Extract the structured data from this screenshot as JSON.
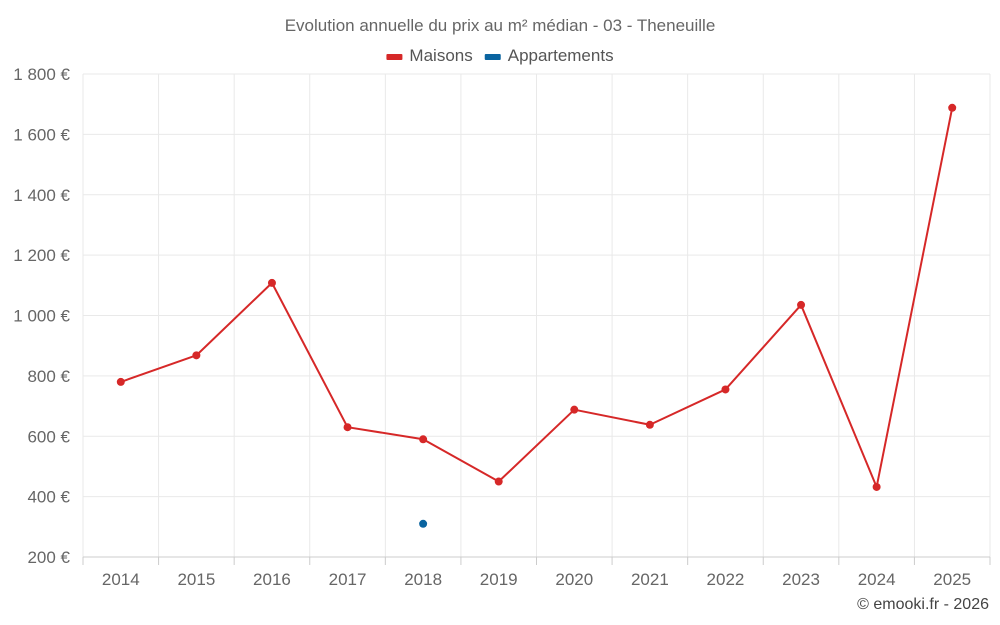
{
  "chart_data": {
    "type": "line",
    "title": "Evolution annuelle du prix au m² médian - 03 - Theneuille",
    "categories": [
      "2014",
      "2015",
      "2016",
      "2017",
      "2018",
      "2019",
      "2020",
      "2021",
      "2022",
      "2023",
      "2024",
      "2025"
    ],
    "series": [
      {
        "name": "Maisons",
        "color": "#d62828",
        "values": [
          780,
          868,
          1108,
          630,
          590,
          450,
          688,
          638,
          755,
          1035,
          432,
          1688
        ]
      },
      {
        "name": "Appartements",
        "color": "#0a64a0",
        "values": [
          null,
          null,
          null,
          null,
          310,
          null,
          null,
          null,
          null,
          null,
          null,
          null
        ]
      }
    ],
    "ylim": [
      200,
      1800
    ],
    "yticks": [
      200,
      400,
      600,
      800,
      1000,
      1200,
      1400,
      1600,
      1800
    ],
    "ytick_labels": [
      "200 €",
      "400 €",
      "600 €",
      "800 €",
      "1 000 €",
      "1 200 €",
      "1 400 €",
      "1 600 €",
      "1 800 €"
    ],
    "xlabel": "",
    "ylabel": "",
    "grid": true,
    "legend": "top-center",
    "credit": "© emooki.fr - 2026"
  }
}
